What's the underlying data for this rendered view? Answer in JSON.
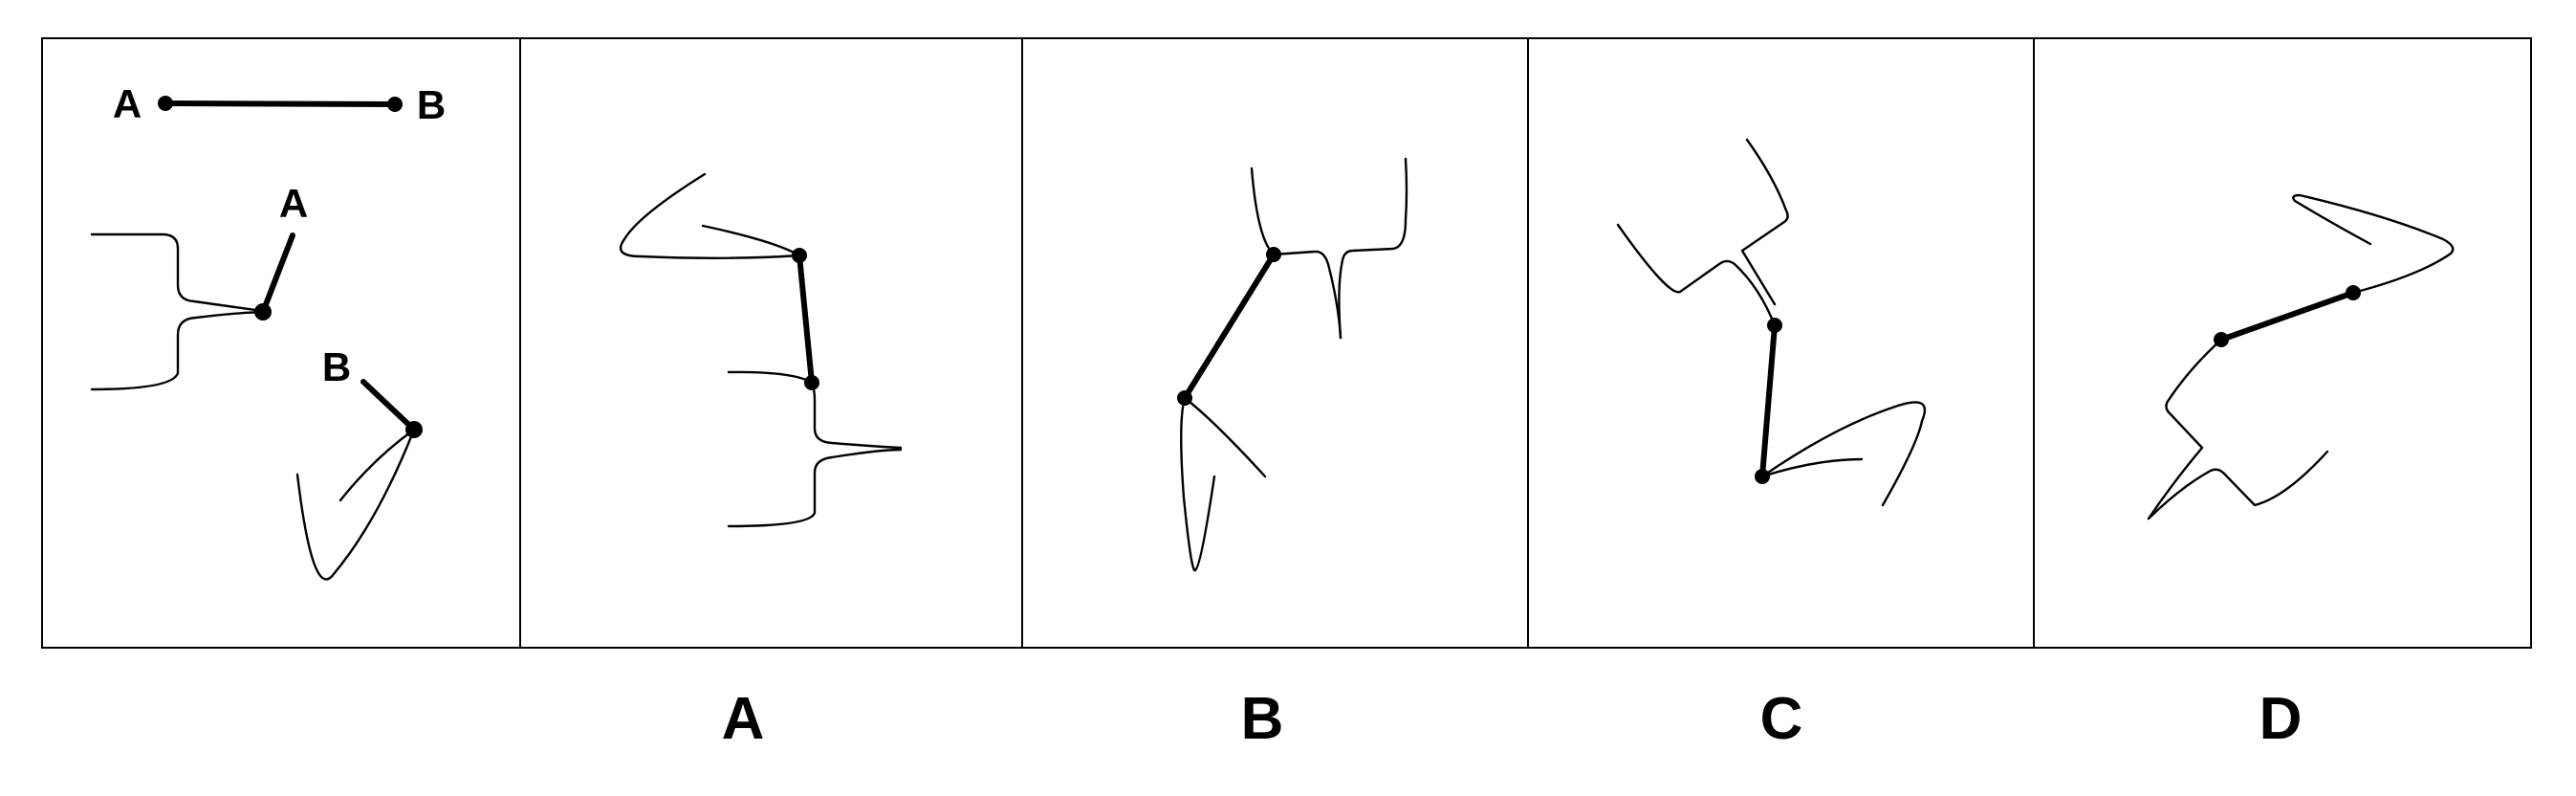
{
  "reference": {
    "segment_endpoint_a": "A",
    "segment_endpoint_b": "B",
    "piece_label_a": "A",
    "piece_label_b": "B"
  },
  "options": [
    {
      "label": "A"
    },
    {
      "label": "B"
    },
    {
      "label": "C"
    },
    {
      "label": "D"
    }
  ]
}
